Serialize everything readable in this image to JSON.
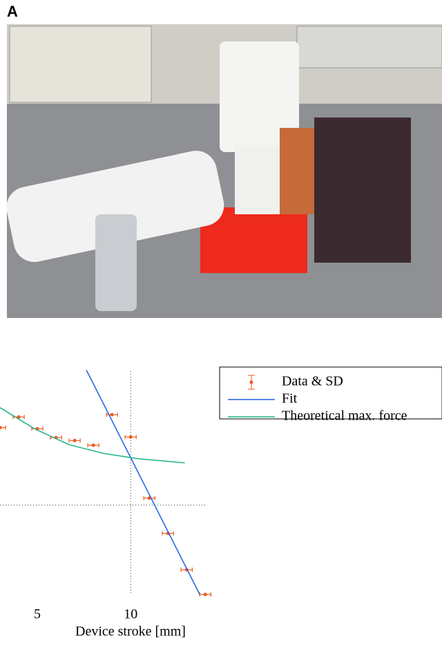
{
  "figure_label": "A",
  "chart_data": {
    "type": "scatter",
    "xlabel": "Device stroke [mm]",
    "xlim": [
      3,
      14.1
    ],
    "ylim": [
      0,
      40
    ],
    "xticks": [
      5,
      10
    ],
    "reference_lines": {
      "x": 10,
      "y": 15.2
    },
    "series": [
      {
        "name": "Data & SD",
        "type": "scatter",
        "color": "#f05a1e",
        "x": [
          3,
          4,
          5,
          6,
          7,
          8,
          9,
          10,
          11,
          12,
          13,
          14
        ],
        "values": [
          28.4,
          30.2,
          28.2,
          26.7,
          26.2,
          25.4,
          30.6,
          26.8,
          16.4,
          10.4,
          4.2,
          0
        ],
        "xerr": [
          0.3,
          0.3,
          0.3,
          0.3,
          0.3,
          0.3,
          0.3,
          0.3,
          0.3,
          0.3,
          0.3,
          0.3
        ]
      },
      {
        "name": "Fit",
        "type": "line",
        "color": "#1f5fe0",
        "x": [
          7.63,
          13.7
        ],
        "values": [
          38.2,
          0
        ]
      },
      {
        "name": "Theoretical max. force",
        "type": "line",
        "color": "#19b38a",
        "x": [
          3,
          4.85,
          6.7,
          8.56,
          10.4,
          12.9
        ],
        "values": [
          31.8,
          28.2,
          25.5,
          24.0,
          23.1,
          22.4
        ]
      }
    ]
  }
}
